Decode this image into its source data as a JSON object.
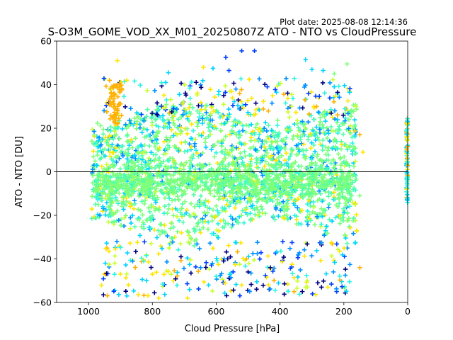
{
  "figure": {
    "plot_date": "Plot date: 2025-08-08 12:14:36"
  },
  "chart_data": {
    "type": "scatter",
    "title": "S-O3M_GOME_VOD_XX_M01_20250807Z ATO - NTO vs CloudPressure",
    "xlabel": "Cloud Pressure [hPa]",
    "ylabel": "ATO - NTO [DU]",
    "xlim": [
      1100,
      0
    ],
    "ylim": [
      -60,
      60
    ],
    "x_inverted": true,
    "xticks": [
      1000,
      800,
      600,
      400,
      200,
      0
    ],
    "yticks": [
      60,
      40,
      20,
      0,
      -20,
      -40,
      -60
    ],
    "xtick_labels": [
      "1000",
      "800",
      "600",
      "400",
      "200",
      "0"
    ],
    "ytick_labels": [
      "60",
      "40",
      "20",
      "0",
      "−20",
      "−40",
      "−60"
    ],
    "reference_line": {
      "y": 0,
      "color": "#000000"
    },
    "marker": "+",
    "grid": false,
    "legend": "none",
    "colormap": "jet",
    "palette": {
      "dark_blue": "#00007f",
      "blue": "#0040ff",
      "light_blue": "#0090ff",
      "cyan": "#00d4ff",
      "aqua": "#2bf5e0",
      "mint": "#50ffa8",
      "light_green": "#7dff7a",
      "yellow_green": "#c9ff2e",
      "yellow": "#ffe600",
      "orange": "#ffb000"
    },
    "series_summary": [
      {
        "region": "main cloud",
        "x_range": [
          990,
          160
        ],
        "y_range": [
          -42,
          42
        ],
        "dominant_color": "light_green"
      },
      {
        "region": "upper outliers",
        "x_range": [
          950,
          180
        ],
        "y_range": [
          20,
          56
        ],
        "colors": [
          "cyan",
          "yellow",
          "orange",
          "blue"
        ]
      },
      {
        "region": "lower outliers",
        "x_range": [
          900,
          200
        ],
        "y_range": [
          -60,
          -30
        ],
        "colors": [
          "yellow",
          "aqua",
          "dark_blue",
          "blue"
        ]
      },
      {
        "region": "cloud pressure zero",
        "x": 0,
        "y_range": [
          -15,
          25
        ],
        "colors": [
          "cyan",
          "yellow",
          "orange"
        ]
      }
    ],
    "sample_points": [
      {
        "x": 520,
        "y": 55.5,
        "c": "blue"
      },
      {
        "x": 480,
        "y": 55.5,
        "c": "blue"
      },
      {
        "x": 570,
        "y": 52.5,
        "c": "blue"
      },
      {
        "x": 320,
        "y": 51.5,
        "c": "cyan"
      },
      {
        "x": 910,
        "y": 51,
        "c": "yellow"
      },
      {
        "x": 190,
        "y": 49.5,
        "c": "light_green"
      },
      {
        "x": 610,
        "y": 47.5,
        "c": "cyan"
      },
      {
        "x": 265,
        "y": 46.5,
        "c": "cyan"
      },
      {
        "x": 560,
        "y": 46.5,
        "c": "blue"
      },
      {
        "x": 300,
        "y": 47,
        "c": "cyan"
      },
      {
        "x": 640,
        "y": 48,
        "c": "yellow"
      },
      {
        "x": 750,
        "y": 45.5,
        "c": "cyan"
      },
      {
        "x": 230,
        "y": 45,
        "c": "light_green"
      },
      {
        "x": 880,
        "y": 42,
        "c": "yellow"
      },
      {
        "x": 230,
        "y": 39,
        "c": "cyan"
      },
      {
        "x": 440,
        "y": 39,
        "c": "blue"
      },
      {
        "x": 150,
        "y": 17,
        "c": "orange"
      },
      {
        "x": 140,
        "y": 9,
        "c": "yellow"
      },
      {
        "x": 150,
        "y": -11,
        "c": "light_green"
      },
      {
        "x": 160,
        "y": -27,
        "c": "yellow"
      },
      {
        "x": 150,
        "y": -44,
        "c": "orange"
      },
      {
        "x": 780,
        "y": -58,
        "c": "yellow"
      },
      {
        "x": 330,
        "y": -55,
        "c": "dark_blue"
      },
      {
        "x": 270,
        "y": -53,
        "c": "dark_blue"
      },
      {
        "x": 250,
        "y": -53,
        "c": "yellow"
      },
      {
        "x": 520,
        "y": -52,
        "c": "yellow"
      },
      {
        "x": 430,
        "y": -44,
        "c": "dark_blue"
      },
      {
        "x": 500,
        "y": -46,
        "c": "dark_blue"
      },
      {
        "x": 880,
        "y": -57,
        "c": "cyan"
      },
      {
        "x": 690,
        "y": -58,
        "c": "yellow"
      },
      {
        "x": 600,
        "y": -48,
        "c": "aqua"
      },
      {
        "x": 0,
        "y": 23,
        "c": "cyan"
      },
      {
        "x": 0,
        "y": 3,
        "c": "orange"
      },
      {
        "x": 0,
        "y": -12,
        "c": "cyan"
      }
    ]
  }
}
